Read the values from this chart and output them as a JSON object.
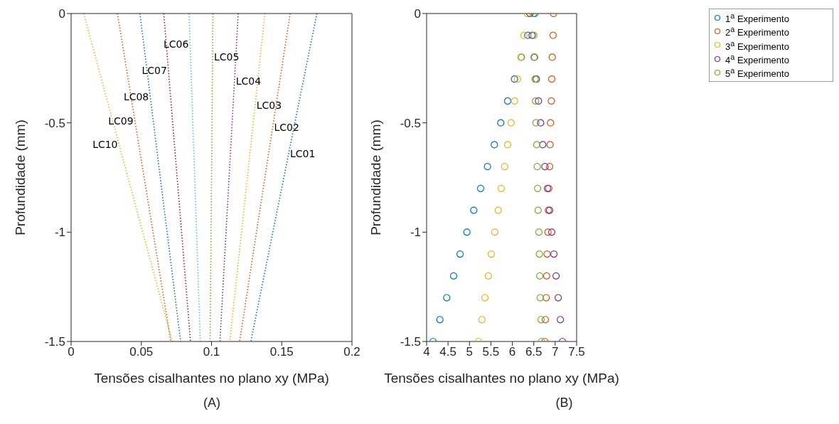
{
  "chart_data": [
    {
      "type": "line",
      "xlabel": "Tensões cisalhantes no plano xy (MPa)",
      "ylabel": "Profundidade (mm)",
      "xlim": [
        0,
        0.2
      ],
      "xticks": [
        0,
        0.05,
        0.1,
        0.15,
        0.2
      ],
      "ylim": [
        -1.5,
        0
      ],
      "yticks": [
        -1.5,
        -1,
        -0.5,
        0
      ],
      "grid": false,
      "legend": false,
      "marker": "none",
      "line_style": "dotted",
      "annotations": [
        "(A)"
      ],
      "series": [
        {
          "name": "LC01",
          "color": "#0072bd",
          "x": [
            0.175,
            0.128
          ],
          "values": [
            0,
            -1.5
          ]
        },
        {
          "name": "LC02",
          "color": "#d95319",
          "x": [
            0.156,
            0.12
          ],
          "values": [
            0,
            -1.5
          ]
        },
        {
          "name": "LC03",
          "color": "#edb120",
          "x": [
            0.138,
            0.113
          ],
          "values": [
            0,
            -1.5
          ]
        },
        {
          "name": "LC04",
          "color": "#7e2f8e",
          "x": [
            0.119,
            0.106
          ],
          "values": [
            0,
            -1.5
          ]
        },
        {
          "name": "LC05",
          "color": "#77ac30",
          "x": [
            0.101,
            0.099
          ],
          "values": [
            0,
            -1.5
          ]
        },
        {
          "name": "LC06",
          "color": "#4dbeee",
          "x": [
            0.084,
            0.092
          ],
          "values": [
            0,
            -1.5
          ]
        },
        {
          "name": "LC07",
          "color": "#a2142f",
          "x": [
            0.066,
            0.085
          ],
          "values": [
            0,
            -1.5
          ]
        },
        {
          "name": "LC08",
          "color": "#0072bd",
          "x": [
            0.049,
            0.078
          ],
          "values": [
            0,
            -1.5
          ]
        },
        {
          "name": "LC09",
          "color": "#d95319",
          "x": [
            0.033,
            0.071
          ],
          "values": [
            0,
            -1.5
          ]
        },
        {
          "name": "LC10",
          "color": "#edb120",
          "x": [
            0.009,
            0.072
          ],
          "values": [
            0,
            -1.5
          ]
        }
      ]
    },
    {
      "type": "scatter",
      "xlabel": "Tensões cisalhantes no plano xy (MPa)",
      "ylabel": "Profundidade (mm)",
      "xlim": [
        4,
        7.5
      ],
      "xticks": [
        4,
        4.5,
        5,
        5.5,
        6,
        6.5,
        7,
        7.5
      ],
      "ylim": [
        -1.5,
        0
      ],
      "yticks": [
        -1.5,
        -1,
        -0.5,
        0
      ],
      "grid": false,
      "legend": "top right",
      "marker": "circle",
      "annotations": [
        "(B)"
      ],
      "series": [
        {
          "name": "1$^{a}$ Experimento",
          "color": "#0072bd",
          "x": [
            6.52,
            6.36,
            6.21,
            6.05,
            5.89,
            5.73,
            5.58,
            5.42,
            5.26,
            5.1,
            4.94,
            4.78,
            4.63,
            4.47,
            4.31,
            4.15
          ],
          "values": [
            0,
            -0.1,
            -0.2,
            -0.3,
            -0.4,
            -0.5,
            -0.6,
            -0.7,
            -0.8,
            -0.9,
            -1,
            -1.1,
            -1.2,
            -1.3,
            -1.4,
            -1.5
          ]
        },
        {
          "name": "2$^{a}$ Experimento",
          "color": "#d95319",
          "x": [
            6.96,
            6.95,
            6.93,
            6.92,
            6.91,
            6.89,
            6.88,
            6.87,
            6.85,
            6.84,
            6.83,
            6.81,
            6.8,
            6.79,
            6.77,
            6.76
          ],
          "values": [
            0,
            -0.1,
            -0.2,
            -0.3,
            -0.4,
            -0.5,
            -0.6,
            -0.7,
            -0.8,
            -0.9,
            -1,
            -1.1,
            -1.2,
            -1.3,
            -1.4,
            -1.5
          ]
        },
        {
          "name": "3$^{a}$ Experimento",
          "color": "#edb120",
          "x": [
            6.35,
            6.27,
            6.2,
            6.12,
            6.05,
            5.97,
            5.89,
            5.82,
            5.74,
            5.67,
            5.59,
            5.51,
            5.44,
            5.36,
            5.29,
            5.21
          ],
          "values": [
            0,
            -0.1,
            -0.2,
            -0.3,
            -0.4,
            -0.5,
            -0.6,
            -0.7,
            -0.8,
            -0.9,
            -1,
            -1.1,
            -1.2,
            -1.3,
            -1.4,
            -1.5
          ]
        },
        {
          "name": "4$^{a}$ Experimento",
          "color": "#7e2f8e",
          "x": [
            6.41,
            6.46,
            6.51,
            6.56,
            6.61,
            6.66,
            6.71,
            6.76,
            6.82,
            6.87,
            6.92,
            6.97,
            7.02,
            7.07,
            7.12,
            7.17
          ],
          "values": [
            0,
            -0.1,
            -0.2,
            -0.3,
            -0.4,
            -0.5,
            -0.6,
            -0.7,
            -0.8,
            -0.9,
            -1,
            -1.1,
            -1.2,
            -1.3,
            -1.4,
            -1.5
          ]
        },
        {
          "name": "5$^{a}$ Experimento",
          "color": "#77ac30",
          "x": [
            6.49,
            6.5,
            6.52,
            6.53,
            6.54,
            6.55,
            6.57,
            6.58,
            6.59,
            6.6,
            6.62,
            6.63,
            6.64,
            6.65,
            6.67,
            6.68
          ],
          "values": [
            0,
            -0.1,
            -0.2,
            -0.3,
            -0.4,
            -0.5,
            -0.6,
            -0.7,
            -0.8,
            -0.9,
            -1,
            -1.1,
            -1.2,
            -1.3,
            -1.4,
            -1.5
          ]
        }
      ]
    }
  ]
}
